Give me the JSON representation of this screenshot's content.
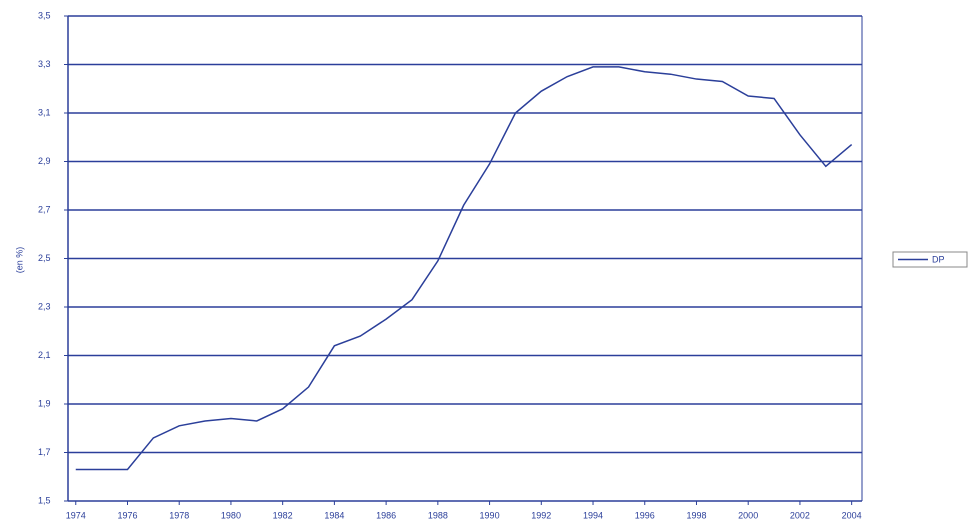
{
  "chart_data": {
    "type": "line",
    "y_label": "(en %)",
    "x": [
      1974,
      1975,
      1976,
      1977,
      1978,
      1979,
      1980,
      1981,
      1982,
      1983,
      1984,
      1985,
      1986,
      1987,
      1988,
      1989,
      1990,
      1991,
      1992,
      1993,
      1994,
      1995,
      1996,
      1997,
      1998,
      1999,
      2000,
      2001,
      2002,
      2003,
      2004
    ],
    "series": [
      {
        "name": "DP",
        "color": "#2b3f9a",
        "values": [
          1.63,
          1.63,
          1.63,
          1.76,
          1.81,
          1.83,
          1.84,
          1.83,
          1.88,
          1.97,
          2.14,
          2.18,
          2.25,
          2.33,
          2.49,
          2.72,
          2.89,
          3.1,
          3.19,
          3.25,
          3.29,
          3.29,
          3.27,
          3.26,
          3.24,
          3.23,
          3.17,
          3.16,
          3.01,
          2.88,
          2.97
        ]
      }
    ],
    "xlim": [
      1973.7,
      2004.4
    ],
    "xticks": [
      1974,
      1976,
      1978,
      1980,
      1982,
      1984,
      1986,
      1988,
      1990,
      1992,
      1994,
      1996,
      1998,
      2000,
      2002,
      2004
    ],
    "ylim": [
      1.5,
      3.5
    ],
    "yticks": [
      {
        "value": 1.5,
        "label": "1,5"
      },
      {
        "value": 1.7,
        "label": "1,7"
      },
      {
        "value": 1.9,
        "label": "1,9"
      },
      {
        "value": 2.1,
        "label": "2,1"
      },
      {
        "value": 2.3,
        "label": "2,3"
      },
      {
        "value": 2.5,
        "label": "2,5"
      },
      {
        "value": 2.7,
        "label": "2,7"
      },
      {
        "value": 2.9,
        "label": "2,9"
      },
      {
        "value": 3.1,
        "label": "3,1"
      },
      {
        "value": 3.3,
        "label": "3,3"
      },
      {
        "value": 3.5,
        "label": "3,5"
      }
    ],
    "grid": true,
    "legend": "right"
  }
}
